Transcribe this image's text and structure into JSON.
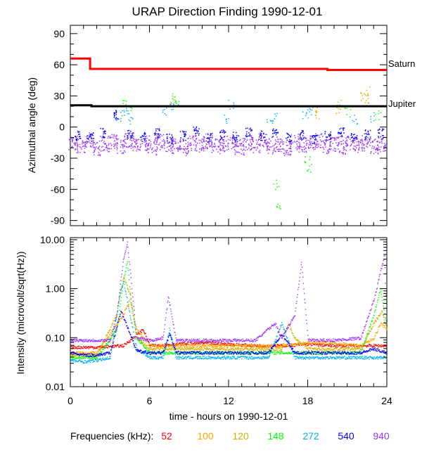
{
  "title": "URAP Direction Finding  1990-12-01",
  "top_panel": {
    "ylabel": "Azimuthal angle (deg)",
    "ylim": [
      -95,
      98
    ],
    "yticks": [
      90,
      60,
      30,
      0,
      -30,
      -60,
      -90
    ],
    "reference_lines": [
      {
        "name": "Saturn",
        "color": "#ff0000",
        "x": [
          0,
          1.5,
          1.5,
          19.5,
          19.5,
          24
        ],
        "y": [
          66,
          66,
          56,
          56,
          55,
          55
        ]
      },
      {
        "name": "Jupiter",
        "color": "#000000",
        "x": [
          0,
          1.6,
          1.6,
          24
        ],
        "y": [
          21,
          21,
          20,
          20
        ]
      }
    ]
  },
  "bottom_panel": {
    "ylabel": "Intensity (microvolt/sqrt(Hz))",
    "yscale": "log",
    "ylim": [
      0.01,
      11
    ],
    "yticks": [
      10.0,
      1.0,
      0.1,
      0.01
    ],
    "ytick_labels": [
      "10.00",
      "1.00",
      "0.10",
      "0.01"
    ]
  },
  "xaxis": {
    "xlabel": "time - hours on 1990-12-01",
    "xlim": [
      0,
      24
    ],
    "xticks": [
      0,
      6,
      12,
      18,
      24
    ]
  },
  "legend": {
    "label": "Frequencies (kHz):",
    "items": [
      {
        "value": "52",
        "color": "#ff0000"
      },
      {
        "value": "100",
        "color": "#ffa500"
      },
      {
        "value": "120",
        "color": "#d4b000"
      },
      {
        "value": "148",
        "color": "#00ff00"
      },
      {
        "value": "272",
        "color": "#00b0f0"
      },
      {
        "value": "540",
        "color": "#0000ff"
      },
      {
        "value": "940",
        "color": "#9932ff"
      }
    ]
  },
  "chart_data": [
    {
      "type": "scatter",
      "panel": "top",
      "title": "URAP Direction Finding  1990-12-01",
      "xlabel": "time - hours on 1990-12-01",
      "ylabel": "Azimuthal angle (deg)",
      "xlim": [
        0,
        24
      ],
      "ylim": [
        -95,
        98
      ],
      "series": [
        {
          "name": "940",
          "color": "#9932ff",
          "x": [
            0.2,
            0.8,
            1.4,
            2.0,
            2.6,
            3.2,
            3.8,
            4.4,
            5.0,
            5.6,
            6.2,
            6.8,
            7.4,
            8.0,
            8.6,
            9.2,
            9.8,
            10.4,
            11.0,
            11.6,
            12.2,
            12.8,
            13.4,
            14.0,
            14.6,
            15.2,
            15.8,
            16.4,
            17.0,
            17.6,
            18.2,
            18.8,
            19.4,
            20.0,
            20.6,
            21.2,
            21.8,
            22.4,
            23.0,
            23.6
          ],
          "y": [
            -15,
            -18,
            -12,
            -20,
            -16,
            -14,
            -18,
            -13,
            -17,
            -15,
            -19,
            -14,
            -16,
            -18,
            -20,
            -15,
            -17,
            -13,
            -18,
            -16,
            -14,
            -19,
            -15,
            -17,
            -12,
            -18,
            -16,
            -20,
            -14,
            -17,
            -15,
            -13,
            -18,
            -16,
            -19,
            -14,
            -17,
            -15,
            -18,
            -16
          ]
        },
        {
          "name": "540",
          "color": "#0000ff",
          "x": [
            0.5,
            1.5,
            2.5,
            3.5,
            4.5,
            5.5,
            6.5,
            7.5,
            8.5,
            9.5,
            10.5,
            11.5,
            12.5,
            13.5,
            14.5,
            15.5,
            16.5,
            17.5,
            18.5,
            19.5,
            20.5,
            21.5,
            22.5,
            23.5
          ],
          "y": [
            -8,
            -10,
            -5,
            12,
            -7,
            -9,
            -6,
            -11,
            -8,
            -4,
            -10,
            -7,
            -9,
            -5,
            -8,
            -6,
            -10,
            -7,
            -12,
            -8,
            -5,
            -9,
            -7,
            -6
          ]
        },
        {
          "name": "272",
          "color": "#00b0f0",
          "x": [
            3.6,
            4.0,
            4.3,
            4.6,
            7.2,
            7.6,
            11.8,
            12.2,
            15.1,
            15.4,
            17.8,
            18.2,
            21.5,
            22.8
          ],
          "y": [
            10,
            15,
            18,
            8,
            14,
            20,
            8,
            22,
            6,
            10,
            12,
            15,
            8,
            10
          ]
        },
        {
          "name": "148",
          "color": "#00ff00",
          "x": [
            4.2,
            4.5,
            7.8,
            8.0,
            15.6,
            15.8,
            17.9,
            18.1,
            21.0,
            23.3
          ],
          "y": [
            25,
            20,
            28,
            22,
            -55,
            -75,
            -30,
            -40,
            15,
            12
          ]
        },
        {
          "name": "120",
          "color": "#d4b000",
          "x": [
            7.7,
            18.5,
            20.3,
            22.1,
            22.5
          ],
          "y": [
            26,
            15,
            22,
            30,
            35
          ]
        },
        {
          "name": "100",
          "color": "#ffa500",
          "x": [
            18.8,
            20.2,
            22.4
          ],
          "y": [
            12,
            18,
            28
          ]
        }
      ]
    },
    {
      "type": "scatter",
      "panel": "bottom",
      "xlabel": "time - hours on 1990-12-01",
      "ylabel": "Intensity (microvolt/sqrt(Hz))",
      "yscale": "log",
      "xlim": [
        0,
        24
      ],
      "ylim": [
        0.01,
        11
      ],
      "series": [
        {
          "name": "52",
          "color": "#ff0000",
          "x": [
            0,
            2,
            4,
            5.5,
            6,
            8,
            10,
            12,
            14,
            16,
            18,
            20,
            22,
            24
          ],
          "y": [
            0.065,
            0.065,
            0.07,
            0.15,
            0.07,
            0.075,
            0.08,
            0.075,
            0.07,
            0.07,
            0.075,
            0.07,
            0.07,
            0.07
          ]
        },
        {
          "name": "100",
          "color": "#ffa500",
          "x": [
            0,
            2,
            4,
            4.5,
            5,
            6,
            8,
            12,
            16,
            18,
            20,
            22,
            23,
            23.5,
            24
          ],
          "y": [
            0.05,
            0.05,
            0.3,
            0.6,
            0.15,
            0.07,
            0.07,
            0.07,
            0.07,
            0.08,
            0.08,
            0.07,
            0.1,
            0.2,
            0.15
          ]
        },
        {
          "name": "120",
          "color": "#d4b000",
          "x": [
            0,
            2,
            3.5,
            4,
            4.5,
            5,
            6,
            8,
            12,
            16,
            16.5,
            17,
            18,
            20,
            22,
            23,
            23.6,
            24
          ],
          "y": [
            0.045,
            0.045,
            0.3,
            1.8,
            0.8,
            0.1,
            0.06,
            0.06,
            0.06,
            0.06,
            0.2,
            0.1,
            0.06,
            0.06,
            0.06,
            0.2,
            0.35,
            0.15
          ]
        },
        {
          "name": "148",
          "color": "#00ff00",
          "x": [
            0,
            2,
            3.5,
            4,
            4.3,
            4.6,
            5,
            6,
            8,
            10,
            12,
            14,
            16,
            18,
            20,
            22,
            23,
            23.5,
            24
          ],
          "y": [
            0.04,
            0.04,
            0.15,
            1.5,
            3.5,
            0.5,
            0.1,
            0.05,
            0.05,
            0.05,
            0.05,
            0.05,
            0.05,
            0.05,
            0.05,
            0.05,
            0.3,
            1.0,
            0.15
          ]
        },
        {
          "name": "272",
          "color": "#00b0f0",
          "x": [
            0,
            1,
            2,
            3,
            3.7,
            4,
            5,
            6,
            7,
            7.5,
            8,
            10,
            12,
            14,
            15,
            16,
            17,
            18,
            19,
            20,
            21,
            22,
            23,
            24
          ],
          "y": [
            0.035,
            0.033,
            0.035,
            0.04,
            0.7,
            1.5,
            0.06,
            0.04,
            0.04,
            0.15,
            0.04,
            0.04,
            0.04,
            0.04,
            0.04,
            0.2,
            0.04,
            0.04,
            0.04,
            0.04,
            0.04,
            0.04,
            0.04,
            0.04
          ]
        },
        {
          "name": "540",
          "color": "#0000ff",
          "x": [
            0,
            1,
            2,
            3,
            3.8,
            4.2,
            5,
            6,
            7,
            7.5,
            8,
            10,
            12,
            14,
            15,
            16,
            17,
            18,
            19,
            20,
            21,
            22,
            23,
            24
          ],
          "y": [
            0.05,
            0.045,
            0.045,
            0.05,
            0.35,
            0.2,
            0.055,
            0.05,
            0.05,
            0.12,
            0.05,
            0.05,
            0.05,
            0.05,
            0.05,
            0.12,
            0.05,
            0.05,
            0.05,
            0.05,
            0.05,
            0.05,
            0.06,
            0.05
          ]
        },
        {
          "name": "940",
          "color": "#9932ff",
          "x": [
            0,
            1,
            2,
            3,
            3.5,
            4,
            4.3,
            5,
            6,
            7,
            7.4,
            8,
            10,
            12,
            14,
            15.5,
            16,
            17,
            17.5,
            18,
            20,
            22,
            23,
            23.8,
            24
          ],
          "y": [
            0.09,
            0.09,
            0.09,
            0.09,
            0.3,
            4.0,
            9.0,
            0.1,
            0.09,
            0.1,
            0.7,
            0.09,
            0.09,
            0.09,
            0.09,
            0.2,
            0.1,
            0.3,
            3.5,
            0.09,
            0.09,
            0.1,
            0.6,
            5.0,
            0.1
          ]
        }
      ]
    }
  ]
}
